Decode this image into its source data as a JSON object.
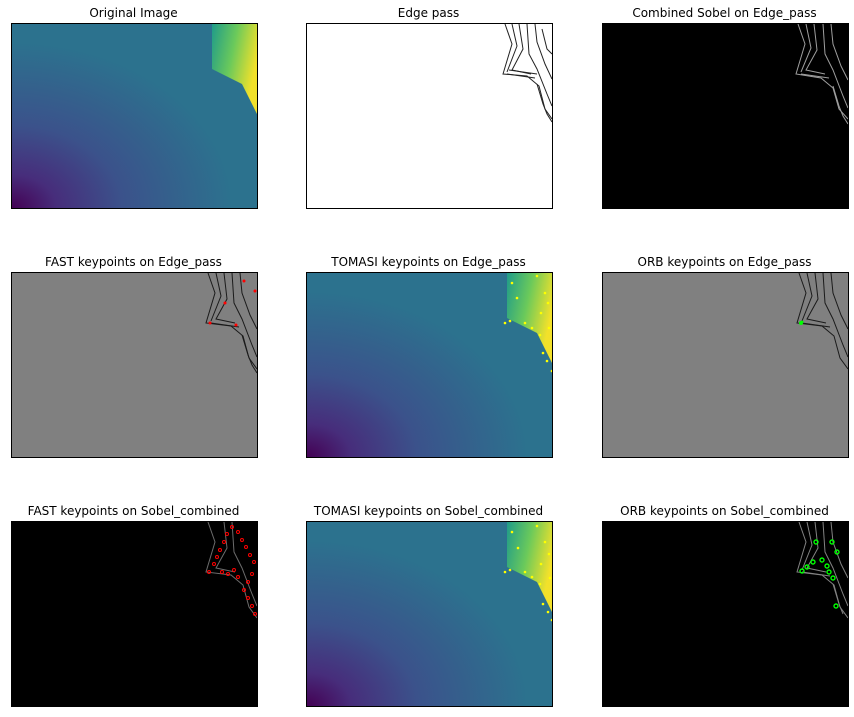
{
  "figure": {
    "panels": [
      {
        "id": "original",
        "title": "Original Image",
        "kind": "viridis"
      },
      {
        "id": "edge",
        "title": "Edge pass",
        "kind": "edge"
      },
      {
        "id": "sobel",
        "title": "Combined Sobel on Edge_pass",
        "kind": "sobel"
      },
      {
        "id": "fast_edge",
        "title": "FAST keypoints on Edge_pass",
        "kind": "gray",
        "keypoint_color": "#ff0000"
      },
      {
        "id": "tomasi_edge",
        "title": "TOMASI keypoints on Edge_pass",
        "kind": "viridis",
        "keypoint_color": "#ffff00"
      },
      {
        "id": "orb_edge",
        "title": "ORB keypoints on Edge_pass",
        "kind": "gray",
        "keypoint_color": "#00ff00"
      },
      {
        "id": "fast_sobel",
        "title": "FAST keypoints on Sobel_combined",
        "kind": "sobel",
        "keypoint_color": "#ff0000"
      },
      {
        "id": "tomasi_sobel",
        "title": "TOMASI keypoints on Sobel_combined",
        "kind": "viridis",
        "keypoint_color": "#ffff00"
      },
      {
        "id": "orb_sobel",
        "title": "ORB keypoints on Sobel_combined",
        "kind": "sobel",
        "keypoint_color": "#00ff00"
      }
    ],
    "colors": {
      "viridis_dark": "#440154",
      "viridis_blue": "#3b528b",
      "viridis_teal": "#2c728e",
      "viridis_green": "#35b779",
      "viridis_yellow": "#fde725",
      "gray_background": "#808080",
      "black_background": "#000000",
      "white_background": "#ffffff"
    }
  }
}
